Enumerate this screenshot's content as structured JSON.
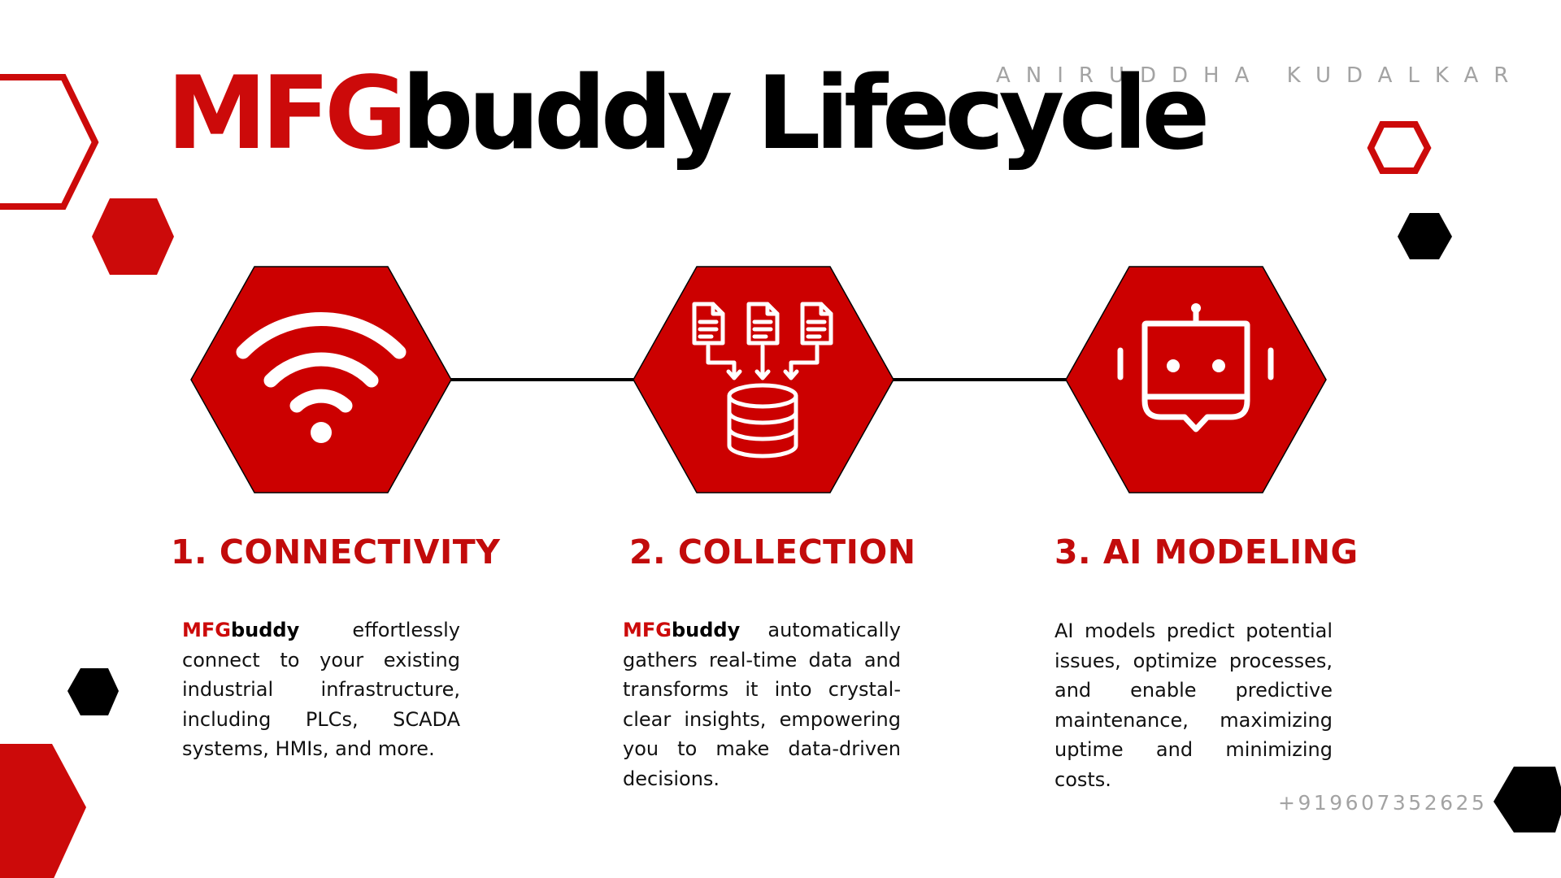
{
  "author": "ANIRUDDHA KUDALKAR",
  "title": {
    "part_red": "MFG",
    "part_black": "buddy Lifecycle"
  },
  "colors": {
    "accent_red": "#cc0a0a",
    "hex_fill": "#cc0000",
    "dark": "#000000",
    "muted": "#a3a3a3"
  },
  "steps": [
    {
      "icon": "wifi-icon",
      "title": "1. CONNECTIVITY",
      "brand_red": "MFG",
      "brand_black": "buddy",
      "text": " effortlessly connect to your existing industrial infrastructure, including PLCs, SCADA systems, HMIs, and more."
    },
    {
      "icon": "data-collection-icon",
      "title": "2. COLLECTION",
      "brand_red": "MFG",
      "brand_black": "buddy",
      "text": " automatically gathers real-time data and transforms it into crystal-clear insights, empowering you to make data-driven decisions."
    },
    {
      "icon": "robot-chat-icon",
      "title": "3. AI MODELING",
      "text": "AI models predict potential issues, optimize processes, and enable predictive maintenance, maximizing uptime and minimizing costs."
    }
  ],
  "phone": "+919607352625"
}
